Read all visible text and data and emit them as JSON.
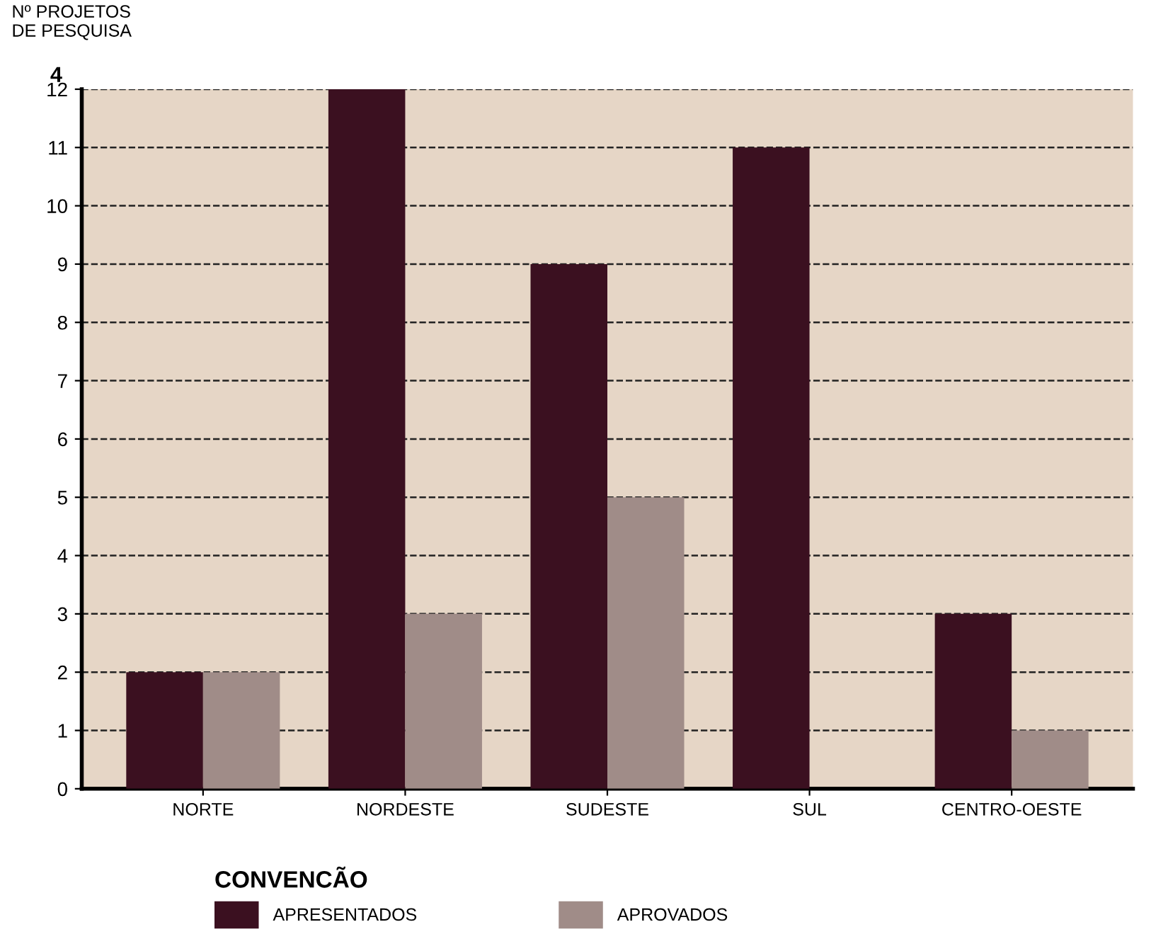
{
  "chart_data": {
    "type": "bar",
    "ylabel": "Nº PROJETOS\nDE PESQUISA",
    "categories": [
      "NORTE",
      "NORDESTE",
      "SUDESTE",
      "SUL",
      "CENTRO-OESTE"
    ],
    "series": [
      {
        "name": "APRESENTADOS",
        "color": "#3b1020",
        "values": [
          2,
          12,
          9,
          11,
          3
        ]
      },
      {
        "name": "APROVADOS",
        "color": "#a08c88",
        "values": [
          2,
          3,
          5,
          0,
          1
        ]
      }
    ],
    "ylim": [
      0,
      12
    ],
    "yticks": [
      0,
      1,
      2,
      3,
      4,
      5,
      6,
      7,
      8,
      9,
      10,
      11,
      12
    ],
    "grid": "y",
    "line_style": "dashed",
    "legend": "bottom",
    "legend_title": "CONVENCÃO",
    "annotations": [
      "4"
    ]
  }
}
